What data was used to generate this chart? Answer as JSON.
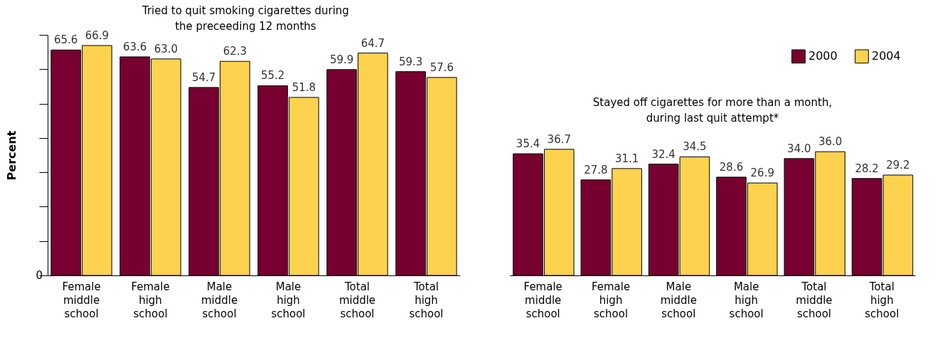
{
  "chart_data": [
    {
      "type": "bar",
      "ylabel": "Percent",
      "categories": [
        "Female middle school",
        "Female high school",
        "Male middle school",
        "Male high school",
        "Total middle school",
        "Total high school"
      ],
      "series": [
        {
          "name": "2000",
          "color": "#780030",
          "values": [
            65.6,
            63.6,
            54.7,
            55.2,
            59.9,
            59.3
          ],
          "value_labels": [
            "65.6",
            "63.6",
            "54.7",
            "55.2",
            "59.9",
            "59.3"
          ]
        },
        {
          "name": "2004",
          "color": "#fdd24f",
          "values": [
            66.9,
            63.0,
            62.3,
            51.8,
            64.7,
            57.6
          ],
          "value_labels": [
            "66.9",
            "63.0",
            "62.3",
            "51.8",
            "64.7",
            "57.6"
          ]
        }
      ],
      "annotations": [
        "Tried to quit smoking cigarettes during\nthe preceeding 12 months",
        "0"
      ],
      "legend": "top right",
      "grid": false
    },
    {
      "type": "bar",
      "categories": [
        "Female middle school",
        "Female high school",
        "Male middle school",
        "Male high school",
        "Total middle school",
        "Total high school"
      ],
      "series": [
        {
          "name": "2000",
          "color": "#780030",
          "values": [
            35.4,
            27.8,
            32.4,
            28.6,
            34.0,
            28.2
          ],
          "value_labels": [
            "35.4",
            "27.8",
            "32.4",
            "28.6",
            "34.0",
            "28.2"
          ]
        },
        {
          "name": "2004",
          "color": "#fdd24f",
          "values": [
            36.7,
            31.1,
            34.5,
            26.9,
            36.0,
            29.2
          ],
          "value_labels": [
            "36.7",
            "31.1",
            "34.5",
            "26.9",
            "36.0",
            "29.2"
          ]
        }
      ],
      "annotations": [
        "Stayed off cigarettes for more than a month,\nduring last quit attempt*"
      ],
      "legend": "top right",
      "grid": false
    }
  ]
}
